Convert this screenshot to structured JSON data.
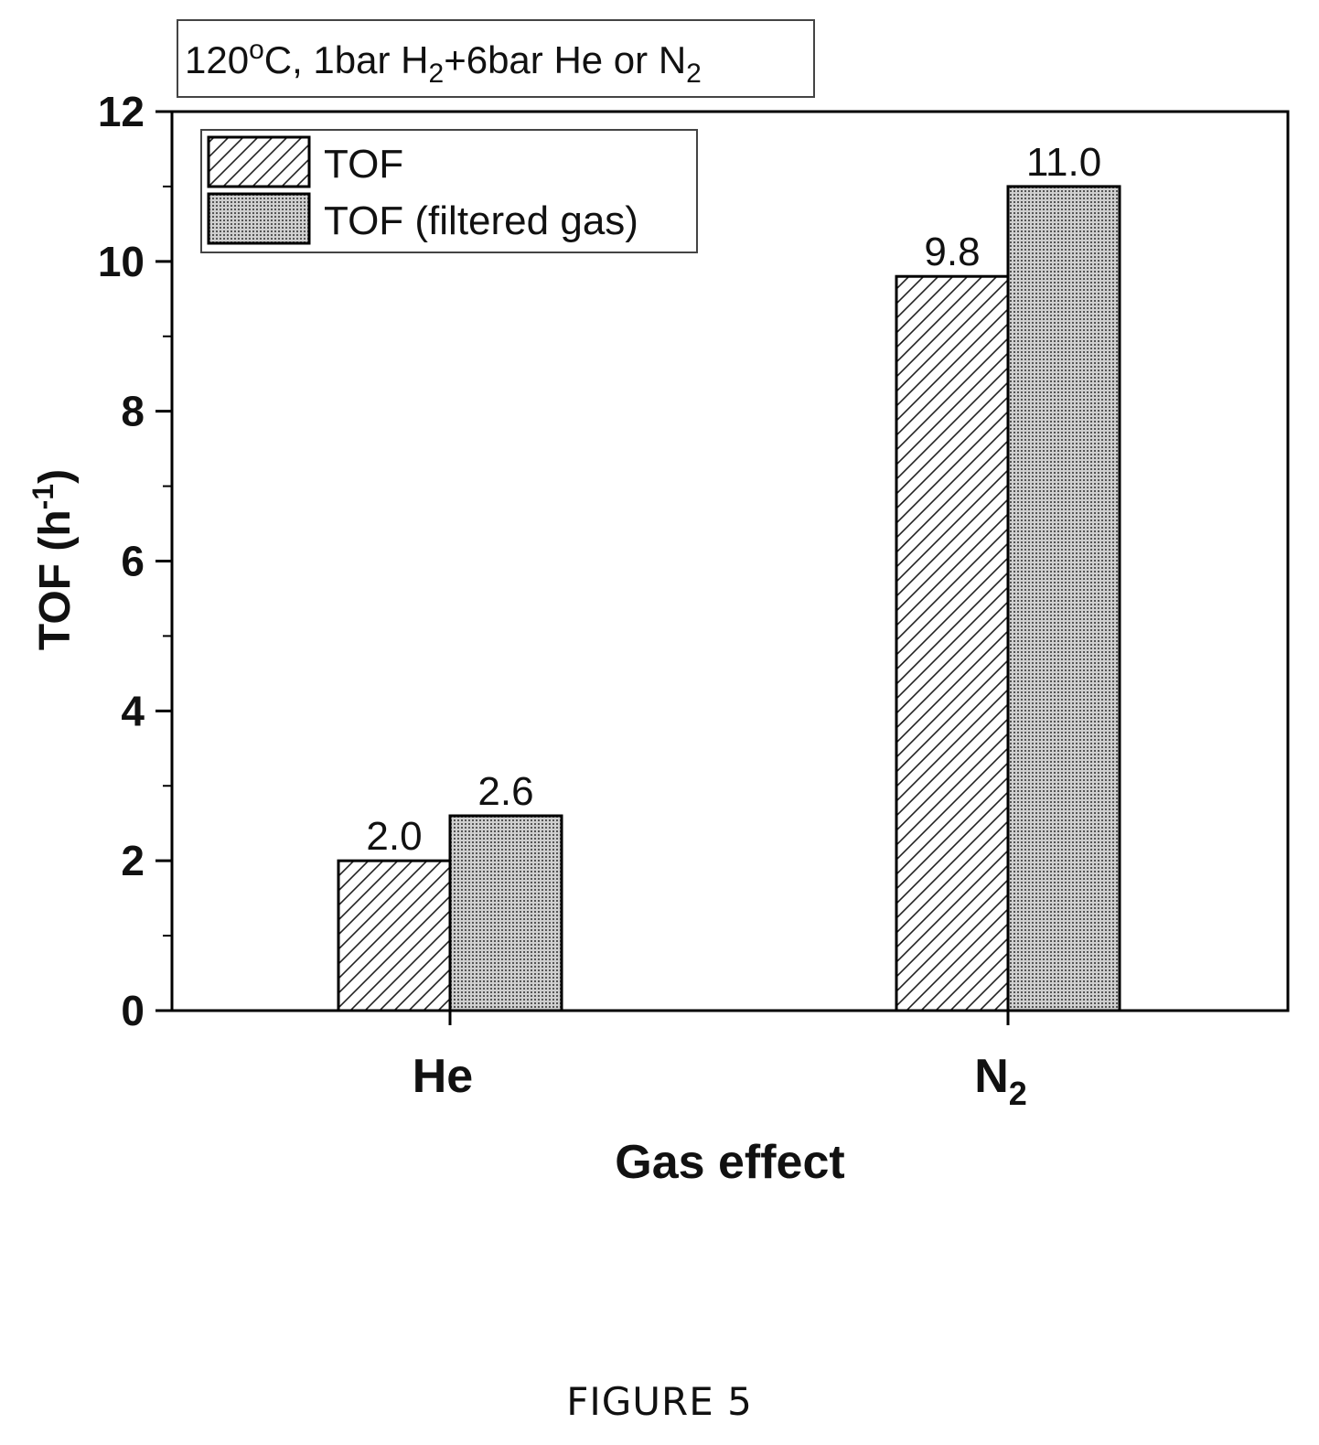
{
  "chart_data": {
    "type": "bar",
    "annotation_box": {
      "prefix": "120",
      "prefix_sup": "o",
      "middle": "C, 1bar H",
      "middle_sub": "2",
      "after_sub": "+6bar He or N",
      "end_sub": "2"
    },
    "categories": [
      {
        "label": "He",
        "sub": ""
      },
      {
        "label": "N",
        "sub": "2"
      }
    ],
    "series": [
      {
        "name": "TOF",
        "pattern": "hatch",
        "values": [
          2.0,
          9.8
        ],
        "labels": [
          "2.0",
          "9.8"
        ]
      },
      {
        "name": "TOF (filtered gas)",
        "pattern": "dotted",
        "values": [
          2.6,
          11.0
        ],
        "labels": [
          "2.6",
          "11.0"
        ]
      }
    ],
    "ylabel": {
      "main": "TOF (h",
      "sup": "-1",
      "close": ")"
    },
    "xlabel": "Gas effect",
    "ylim": [
      0,
      12
    ],
    "yticks": [
      "0",
      "2",
      "4",
      "6",
      "8",
      "10",
      "12"
    ],
    "legend_position": "top-left"
  },
  "figure_caption": "FIGURE 5"
}
